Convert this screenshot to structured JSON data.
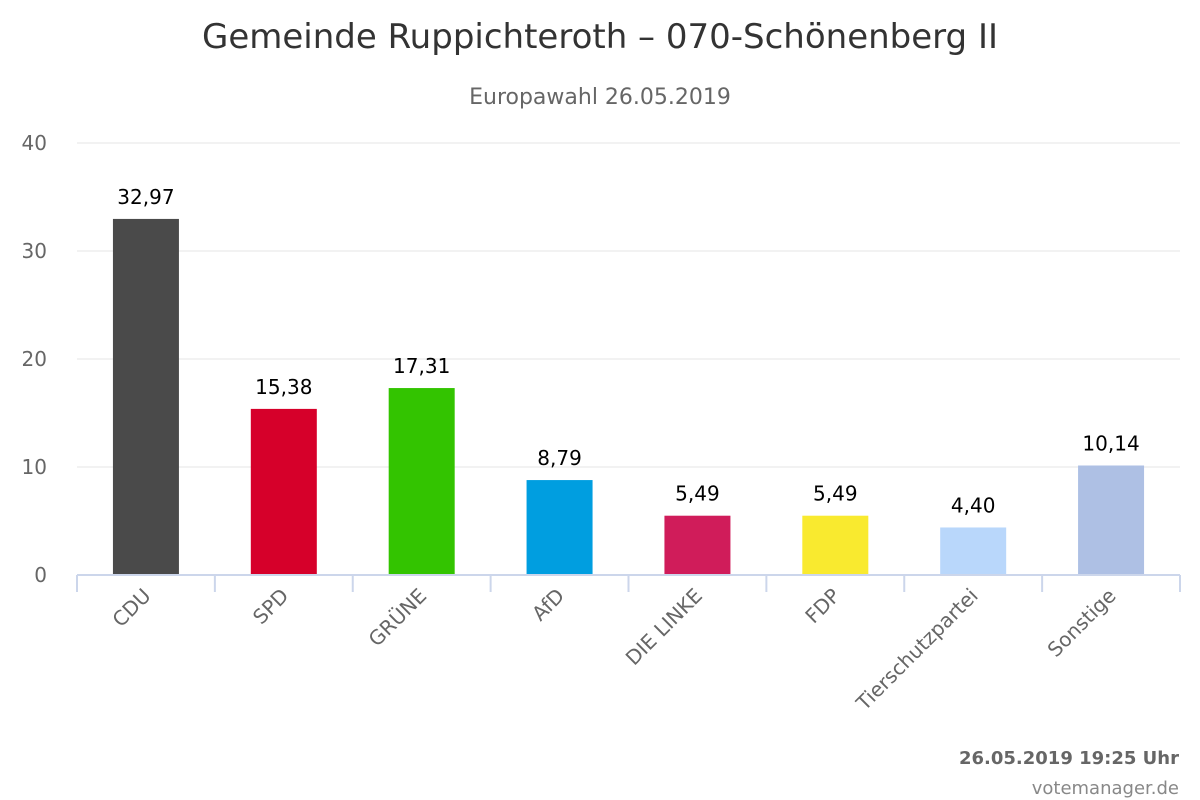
{
  "chart_data": {
    "type": "bar",
    "title": "Gemeinde Ruppichteroth – 070-Schönenberg II",
    "subtitle": "Europawahl 26.05.2019",
    "xlabel": "",
    "ylabel": "",
    "ylim": [
      0,
      40
    ],
    "yticks": [
      0,
      10,
      20,
      30,
      40
    ],
    "grid": true,
    "categories": [
      "CDU",
      "SPD",
      "GRÜNE",
      "AfD",
      "DIE LINKE",
      "FDP",
      "Tierschutzpartei",
      "Sonstige"
    ],
    "values": [
      32.97,
      15.38,
      17.31,
      8.79,
      5.49,
      5.49,
      4.4,
      10.14
    ],
    "data_labels": [
      "32,97",
      "15,38",
      "17,31",
      "8,79",
      "5,49",
      "5,49",
      "4,40",
      "10,14"
    ],
    "colors": [
      "#4a4a4a",
      "#d6002a",
      "#33c400",
      "#009ee0",
      "#d01c5a",
      "#f9ea2f",
      "#b9d7fb",
      "#aec0e4"
    ]
  },
  "footer": {
    "timestamp": "26.05.2019 19:25 Uhr",
    "source": "votemanager.de"
  }
}
